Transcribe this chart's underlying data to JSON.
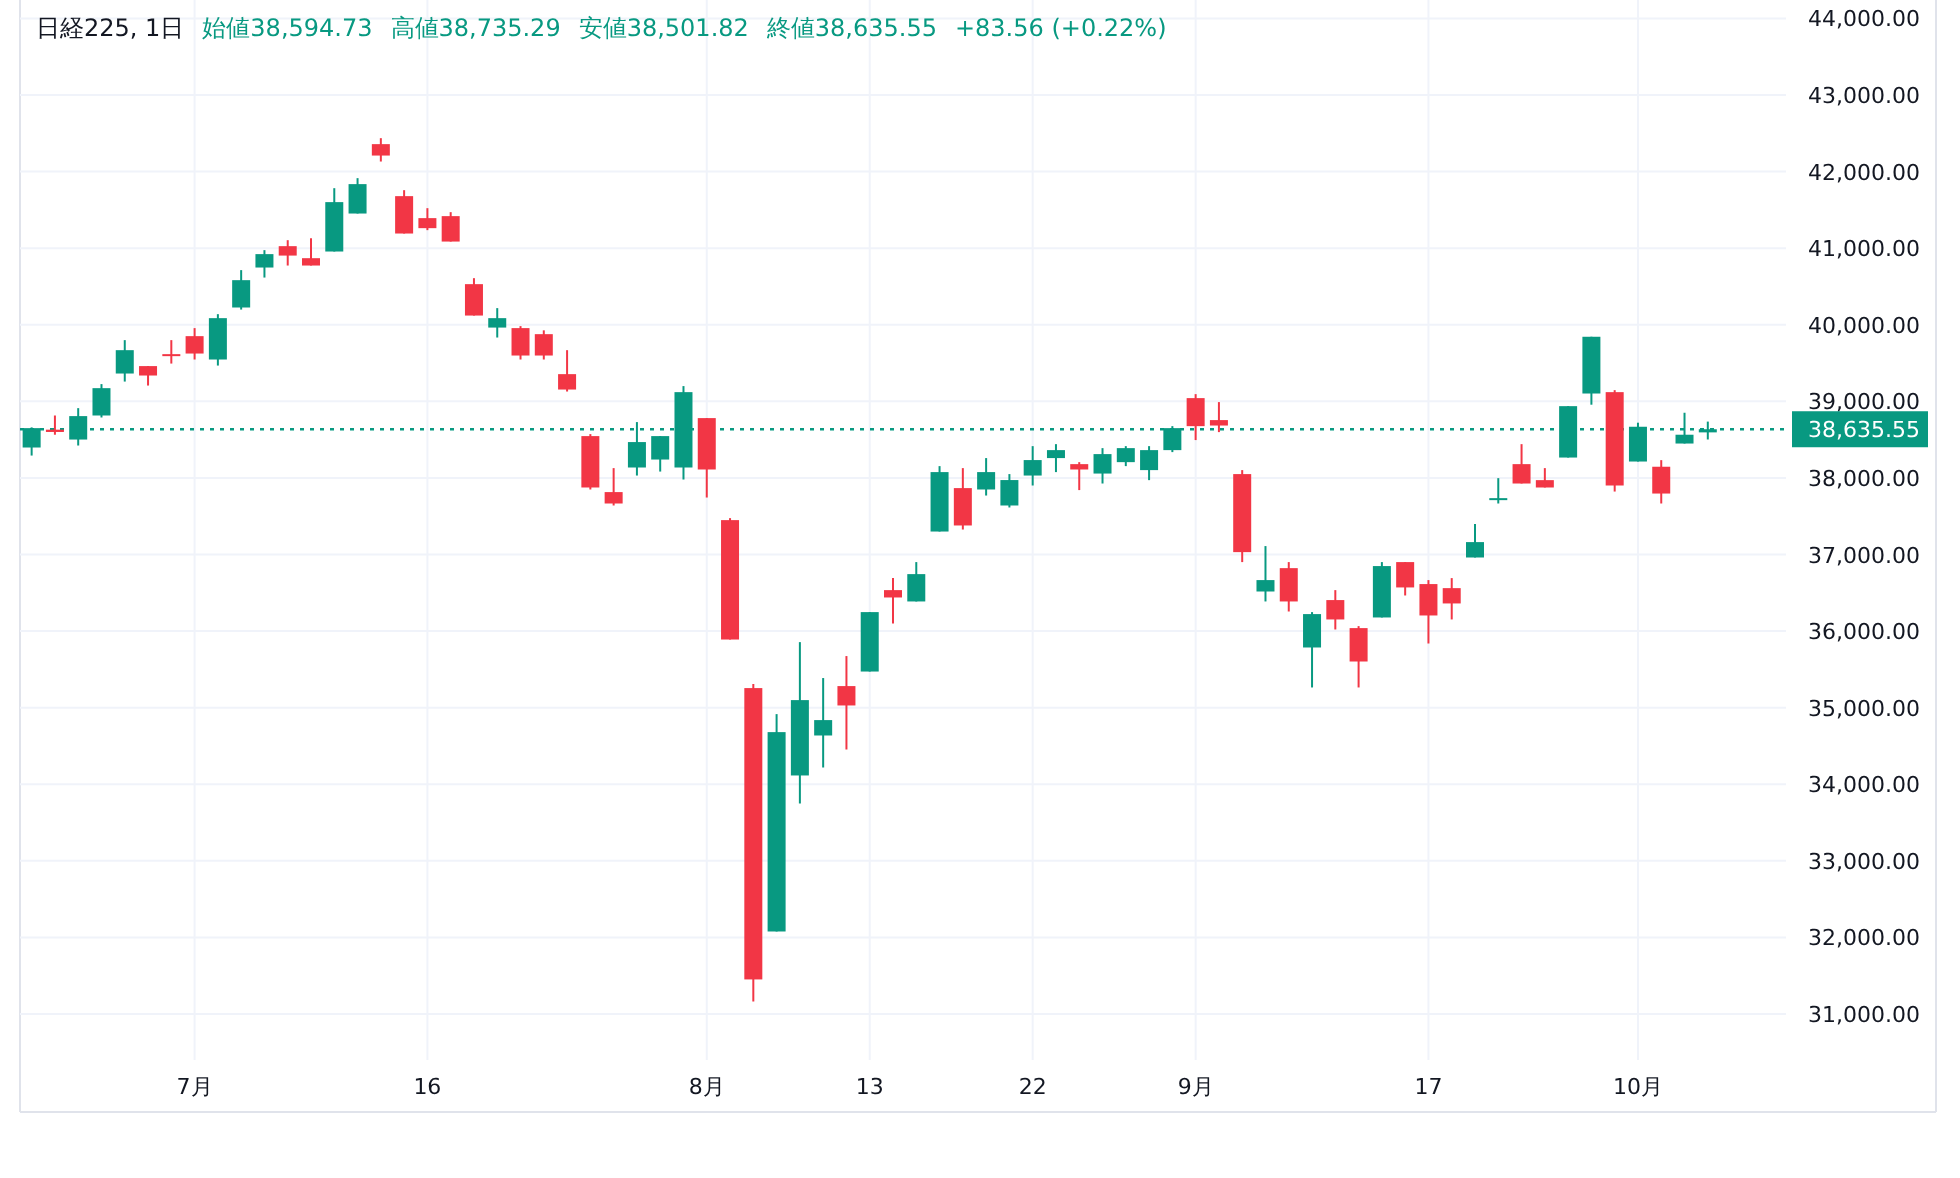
{
  "chart_data": {
    "type": "candlestick",
    "title": "日経225, 1日",
    "annotations": [
      "始値38,594.73",
      "高値38,735.29",
      "安値38,501.82",
      "終値38,635.55",
      "+83.56 (+0.22%)"
    ],
    "categories": [
      null,
      null,
      null,
      null,
      null,
      null,
      null,
      "7月",
      null,
      null,
      null,
      null,
      null,
      null,
      null,
      null,
      null,
      "16",
      null,
      null,
      null,
      null,
      null,
      null,
      null,
      null,
      null,
      null,
      null,
      "8月",
      null,
      null,
      null,
      null,
      null,
      null,
      "13",
      null,
      null,
      null,
      null,
      null,
      null,
      "22",
      null,
      null,
      null,
      null,
      null,
      null,
      "9月",
      null,
      null,
      null,
      null,
      null,
      null,
      null,
      null,
      null,
      "17",
      null,
      null,
      null,
      null,
      null,
      null,
      null,
      null,
      "10月",
      null,
      null,
      null
    ],
    "ohlc": [
      [
        38397,
        38660,
        38292,
        38650
      ],
      [
        38630,
        38815,
        38564,
        38600
      ],
      [
        38501,
        38911,
        38423,
        38807
      ],
      [
        38815,
        39225,
        38789,
        39172
      ],
      [
        39363,
        39799,
        39258,
        39668
      ],
      [
        39460,
        39460,
        39206,
        39337
      ],
      [
        39616,
        39799,
        39493,
        39598
      ],
      [
        39851,
        39956,
        39546,
        39624
      ],
      [
        39546,
        40138,
        39467,
        40086
      ],
      [
        40225,
        40713,
        40198,
        40582
      ],
      [
        40747,
        40974,
        40616,
        40922
      ],
      [
        41026,
        41104,
        40773,
        40903
      ],
      [
        40869,
        41130,
        40773,
        40773
      ],
      [
        40956,
        41783,
        40956,
        41601
      ],
      [
        41452,
        41914,
        41452,
        41836
      ],
      [
        42358,
        42436,
        42131,
        42209
      ],
      [
        41679,
        41757,
        41191,
        41191
      ],
      [
        41392,
        41522,
        41235,
        41261
      ],
      [
        41418,
        41470,
        41086,
        41086
      ],
      [
        40530,
        40608,
        40120,
        40120
      ],
      [
        39963,
        40217,
        39833,
        40086
      ],
      [
        39956,
        39982,
        39546,
        39598
      ],
      [
        39877,
        39927,
        39546,
        39598
      ],
      [
        39355,
        39668,
        39128,
        39154
      ],
      [
        38546,
        38572,
        37849,
        37875
      ],
      [
        37815,
        38128,
        37640,
        37666
      ],
      [
        38136,
        38729,
        38031,
        38468
      ],
      [
        38240,
        38546,
        38083,
        38546
      ],
      [
        38136,
        39199,
        37979,
        39120
      ],
      [
        38781,
        38781,
        37744,
        38110
      ],
      [
        37449,
        37475,
        35890,
        35890
      ],
      [
        35256,
        35308,
        31164,
        31452
      ],
      [
        32078,
        34916,
        32078,
        34681
      ],
      [
        34115,
        35856,
        33749,
        35099
      ],
      [
        34637,
        35387,
        34219,
        34838
      ],
      [
        35282,
        35674,
        34454,
        35029
      ],
      [
        35472,
        36248,
        35472,
        36248
      ],
      [
        36535,
        36692,
        36099,
        36439
      ],
      [
        36387,
        36901,
        36387,
        36744
      ],
      [
        37300,
        38154,
        37300,
        38076
      ],
      [
        37867,
        38128,
        37326,
        37379
      ],
      [
        37849,
        38259,
        37770,
        38076
      ],
      [
        37640,
        38050,
        37614,
        37972
      ],
      [
        38031,
        38415,
        37901,
        38233
      ],
      [
        38259,
        38441,
        38076,
        38363
      ],
      [
        38180,
        38206,
        37841,
        38110
      ],
      [
        38057,
        38389,
        37927,
        38311
      ],
      [
        38206,
        38415,
        38154,
        38389
      ],
      [
        38102,
        38415,
        37971,
        38363
      ],
      [
        38363,
        38676,
        38337,
        38650
      ],
      [
        39042,
        39094,
        38494,
        38676
      ],
      [
        38755,
        38990,
        38598,
        38684
      ],
      [
        38050,
        38102,
        36901,
        37031
      ],
      [
        36517,
        37110,
        36387,
        36666
      ],
      [
        36822,
        36901,
        36256,
        36387
      ],
      [
        35786,
        36248,
        35264,
        36222
      ],
      [
        36405,
        36535,
        36021,
        36152
      ],
      [
        36039,
        36065,
        35264,
        35603
      ],
      [
        36178,
        36901,
        36178,
        36849
      ],
      [
        36901,
        36901,
        36465,
        36570
      ],
      [
        36614,
        36666,
        35838,
        36204
      ],
      [
        36561,
        36692,
        36152,
        36361
      ],
      [
        36961,
        37397,
        36961,
        37162
      ],
      [
        37718,
        37997,
        37666,
        37736
      ],
      [
        38180,
        38441,
        37927,
        37927
      ],
      [
        37971,
        38128,
        37875,
        37875
      ],
      [
        38266,
        38937,
        38266,
        38937
      ],
      [
        39102,
        39843,
        38956,
        39843
      ],
      [
        39120,
        39146,
        37822,
        37901
      ],
      [
        38214,
        38721,
        38214,
        38668
      ],
      [
        38146,
        38232,
        37666,
        37796
      ],
      [
        38449,
        38851,
        38449,
        38564
      ],
      [
        38594.73,
        38735.29,
        38501.82,
        38635.55
      ]
    ],
    "colors": [
      "#089981",
      "#f23645",
      "#089981",
      "#089981",
      "#089981",
      "#f23645",
      "#f23645",
      "#f23645",
      "#089981",
      "#089981",
      "#089981",
      "#f23645",
      "#f23645",
      "#089981",
      "#089981",
      "#f23645",
      "#f23645",
      "#f23645",
      "#f23645",
      "#f23645",
      "#089981",
      "#f23645",
      "#f23645",
      "#f23645",
      "#f23645",
      "#f23645",
      "#089981",
      "#089981",
      "#089981",
      "#f23645",
      "#f23645",
      "#f23645",
      "#089981",
      "#089981",
      "#089981",
      "#f23645",
      "#089981",
      "#f23645",
      "#089981",
      "#089981",
      "#f23645",
      "#089981",
      "#089981",
      "#089981",
      "#089981",
      "#f23645",
      "#089981",
      "#089981",
      "#089981",
      "#089981",
      "#f23645",
      "#f23645",
      "#f23645",
      "#089981",
      "#f23645",
      "#089981",
      "#f23645",
      "#f23645",
      "#089981",
      "#f23645",
      "#f23645",
      "#f23645",
      "#089981",
      "#089981",
      "#f23645",
      "#f23645",
      "#089981",
      "#089981",
      "#f23645",
      "#089981",
      "#f23645",
      "#089981",
      "#089981"
    ],
    "ylim": [
      30400,
      44240
    ],
    "yticks": [
      {
        "value": 31000,
        "label": "31,000.00"
      },
      {
        "value": 32000,
        "label": "32,000.00"
      },
      {
        "value": 33000,
        "label": "33,000.00"
      },
      {
        "value": 34000,
        "label": "34,000.00"
      },
      {
        "value": 35000,
        "label": "35,000.00"
      },
      {
        "value": 36000,
        "label": "36,000.00"
      },
      {
        "value": 37000,
        "label": "37,000.00"
      },
      {
        "value": 38000,
        "label": "38,000.00"
      },
      {
        "value": 39000,
        "label": "39,000.00"
      },
      {
        "value": 40000,
        "label": "40,000.00"
      },
      {
        "value": 41000,
        "label": "41,000.00"
      },
      {
        "value": 42000,
        "label": "42,000.00"
      },
      {
        "value": 43000,
        "label": "43,000.00"
      },
      {
        "value": 44000,
        "label": "44,000.00"
      }
    ],
    "ref_lines": [
      {
        "axis": "y",
        "value": 38635.55,
        "label": "38,635.55",
        "color": "#089981",
        "line_style": "dotted"
      }
    ],
    "grid": true
  }
}
